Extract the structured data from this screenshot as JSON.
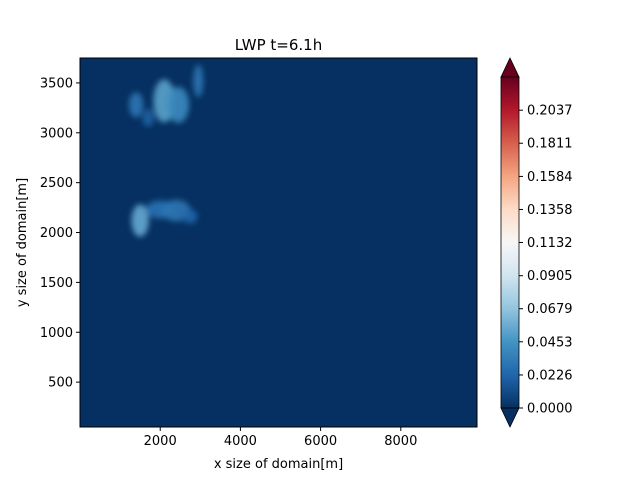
{
  "chart_data": {
    "type": "heatmap",
    "title": "LWP t=6.1h",
    "xlabel": "x size of domain[m]",
    "ylabel": "y size of domain[m]",
    "xlim": [
      0,
      9900
    ],
    "ylim": [
      50,
      3750
    ],
    "x_ticks": [
      2000,
      4000,
      6000,
      8000
    ],
    "y_ticks": [
      500,
      1000,
      1500,
      2000,
      2500,
      3000,
      3500
    ],
    "colormap": "RdBu_r",
    "colorbar": {
      "min": 0.0,
      "max": 0.2264,
      "extend": "both",
      "ticks": [
        "0.0000",
        "0.0226",
        "0.0453",
        "0.0679",
        "0.0905",
        "0.1132",
        "0.1358",
        "0.1584",
        "0.1811",
        "0.2037"
      ],
      "tick_values": [
        0.0,
        0.0226,
        0.0453,
        0.0679,
        0.0905,
        0.1132,
        0.1358,
        0.1584,
        0.1811,
        0.2037
      ]
    },
    "background_value": 0.0,
    "cloud_features": [
      {
        "x": 1500,
        "y": 2120,
        "sx": 120,
        "sy": 90,
        "value": 0.055
      },
      {
        "x": 2000,
        "y": 2230,
        "sx": 200,
        "sy": 50,
        "value": 0.028
      },
      {
        "x": 2400,
        "y": 2220,
        "sx": 200,
        "sy": 60,
        "value": 0.03
      },
      {
        "x": 2750,
        "y": 2160,
        "sx": 100,
        "sy": 40,
        "value": 0.022
      },
      {
        "x": 1400,
        "y": 3280,
        "sx": 100,
        "sy": 70,
        "value": 0.03
      },
      {
        "x": 1700,
        "y": 3150,
        "sx": 80,
        "sy": 50,
        "value": 0.02
      },
      {
        "x": 2100,
        "y": 3320,
        "sx": 150,
        "sy": 120,
        "value": 0.052
      },
      {
        "x": 2450,
        "y": 3280,
        "sx": 150,
        "sy": 100,
        "value": 0.04
      },
      {
        "x": 2950,
        "y": 3520,
        "sx": 70,
        "sy": 90,
        "value": 0.03
      }
    ]
  }
}
